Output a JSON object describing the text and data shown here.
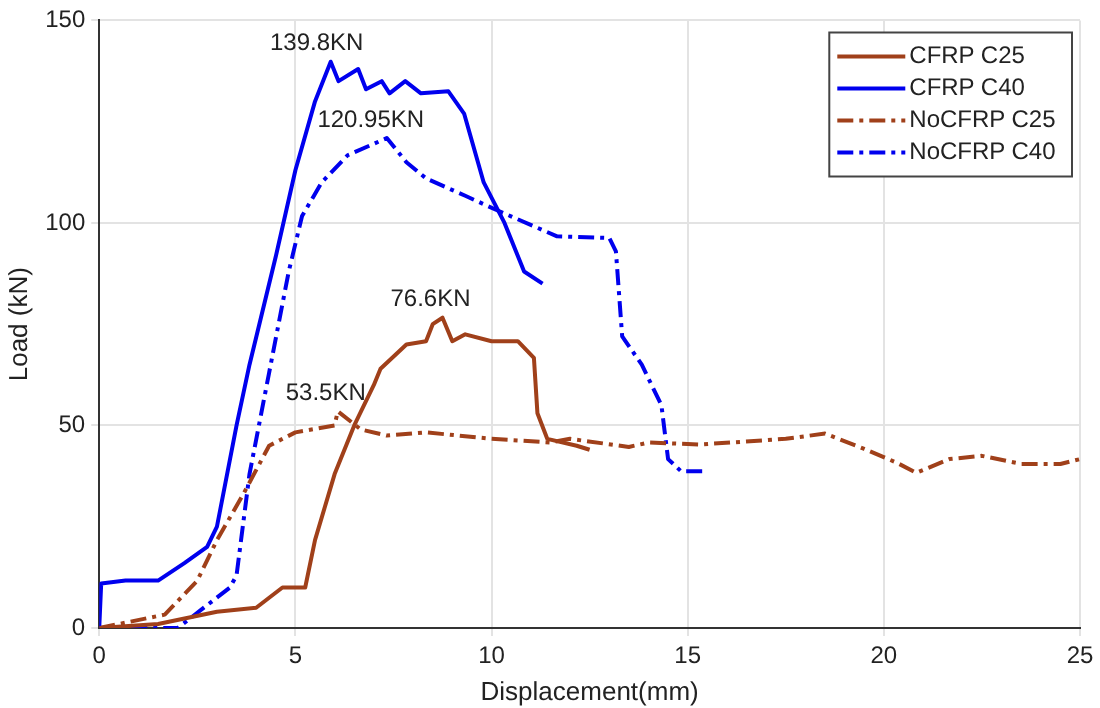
{
  "chart_data": {
    "type": "line",
    "xlabel": "Displacement(mm)",
    "ylabel": "Load (kN)",
    "xlim": [
      0,
      25
    ],
    "xticks": [
      0,
      5,
      10,
      15,
      20,
      25
    ],
    "ylim": [
      0,
      150
    ],
    "yticks": [
      0,
      50,
      100,
      150
    ],
    "grid": true,
    "legend": "top right",
    "marker": "none",
    "series": [
      {
        "name": "CFRP C25",
        "color": "#a0401a",
        "line_style": "solid",
        "x": [
          0,
          1.5,
          3,
          4,
          4.67,
          5.25,
          5.5,
          6,
          6.5,
          7,
          7.17,
          7.83,
          8.33,
          8.5,
          8.75,
          9,
          9.33,
          10,
          10.67,
          11.08,
          11.17,
          11.42,
          12.17,
          12.5
        ],
        "values": [
          0,
          1,
          4,
          5,
          10,
          10,
          21.7,
          38,
          50,
          60,
          64,
          70,
          70.8,
          75,
          76.6,
          70.8,
          72.5,
          70.8,
          70.8,
          66.7,
          53,
          46.7,
          45,
          44
        ]
      },
      {
        "name": "CFRP C40",
        "color": "#0000ee",
        "line_style": "solid",
        "x": [
          0,
          0.05,
          0.67,
          1.5,
          2.17,
          2.75,
          3,
          3.5,
          3.83,
          4.5,
          5,
          5.5,
          5.9,
          6.1,
          6.6,
          6.8,
          7.2,
          7.4,
          7.8,
          8.2,
          8.9,
          9.3,
          9.8,
          10.33,
          10.83,
          11.3
        ],
        "values": [
          0,
          11,
          11.7,
          11.7,
          16,
          20,
          25,
          50,
          65,
          91.7,
          113,
          130,
          139.8,
          135,
          138,
          133,
          135,
          132,
          135,
          132,
          132.5,
          127,
          110,
          100,
          88,
          85
        ]
      },
      {
        "name": "NoCFRP C25",
        "color": "#a0401a",
        "line_style": "dashdot",
        "x": [
          0,
          1.67,
          2.5,
          3,
          3.67,
          4.33,
          5,
          6,
          6.08,
          6.67,
          7.33,
          8.33,
          10,
          11.5,
          12,
          13.5,
          14,
          15.33,
          17.5,
          18.5,
          19.5,
          20.33,
          20.83,
          21.67,
          22.5,
          23.5,
          24.5,
          25
        ],
        "values": [
          0,
          3.3,
          11.7,
          21.7,
          33,
          45,
          48.3,
          50,
          53.5,
          49,
          47.5,
          48.3,
          46.7,
          45.8,
          46.7,
          44.7,
          45.8,
          45.3,
          46.7,
          48,
          44.2,
          40.8,
          38.3,
          41.7,
          42.5,
          40.5,
          40.5,
          41.7
        ]
      },
      {
        "name": "NoCFRP C40",
        "color": "#0000ee",
        "line_style": "dashdot",
        "x": [
          0,
          2,
          3.33,
          3.5,
          3.83,
          4.33,
          4.67,
          4.83,
          5.17,
          5.67,
          6.33,
          7.33,
          7.83,
          8.33,
          9.33,
          10.17,
          11.67,
          13,
          13.17,
          13.33,
          13.83,
          14.33,
          14.5,
          14.83,
          15.4
        ],
        "values": [
          0,
          0,
          10,
          13,
          38,
          63,
          80,
          88,
          101.7,
          110,
          116.7,
          120.95,
          115,
          111,
          106.7,
          103,
          96.7,
          96.3,
          93,
          72,
          65,
          55,
          41.7,
          38.7,
          38.7
        ]
      }
    ],
    "annotations": [
      {
        "text": "139.8KN",
        "x": 5.9,
        "y": 139.8
      },
      {
        "text": "120.95KN",
        "x": 7.33,
        "y": 120.95
      },
      {
        "text": "76.6KN",
        "x": 8.75,
        "y": 76.6
      },
      {
        "text": "53.5KN",
        "x": 6.08,
        "y": 53.5
      }
    ]
  }
}
